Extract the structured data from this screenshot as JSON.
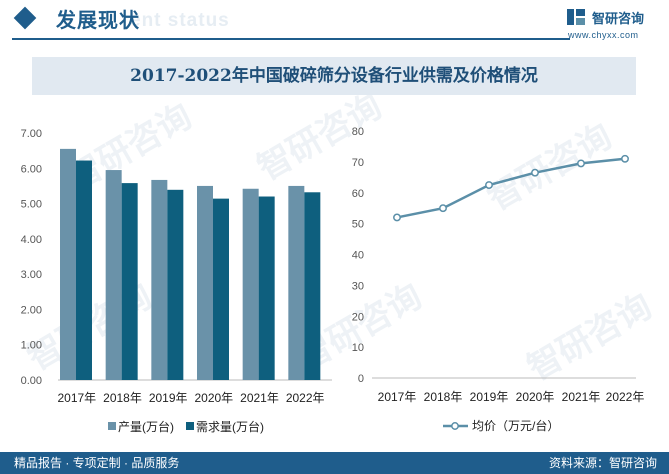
{
  "header": {
    "title": "发展现状",
    "title_bg": "ent status",
    "logo_text": "智研咨询",
    "logo_url": "www.chyxx.com"
  },
  "banner": {
    "title": "2017-2022年中国破碎筛分设备行业供需及价格情况"
  },
  "footer": {
    "left": "精品报告 · 专项定制 · 品质服务",
    "right": "资料来源：智研咨询"
  },
  "watermark": "智研咨询",
  "colors": {
    "brand": "#1f5d8c",
    "production": "#6a92a9",
    "demand": "#0e5f7e",
    "price_line": "#5b8fa8"
  },
  "chart_data": [
    {
      "type": "bar",
      "categories": [
        "2017年",
        "2018年",
        "2019年",
        "2020年",
        "2021年",
        "2022年"
      ],
      "ylim": [
        0,
        7
      ],
      "yticks": [
        "0.00",
        "1.00",
        "2.00",
        "3.00",
        "4.00",
        "5.00",
        "6.00",
        "7.00"
      ],
      "series": [
        {
          "name": "产量(万台)",
          "values": [
            6.55,
            5.95,
            5.67,
            5.5,
            5.42,
            5.5
          ]
        },
        {
          "name": "需求量(万台)",
          "values": [
            6.22,
            5.58,
            5.39,
            5.14,
            5.2,
            5.32
          ]
        }
      ],
      "legend": "bottom"
    },
    {
      "type": "line",
      "categories": [
        "2017年",
        "2018年",
        "2019年",
        "2020年",
        "2021年",
        "2022年"
      ],
      "ylim": [
        0,
        80
      ],
      "yticks": [
        "0",
        "10",
        "20",
        "30",
        "40",
        "50",
        "60",
        "70",
        "80"
      ],
      "series": [
        {
          "name": "均价（万元/台）",
          "values": [
            52,
            55,
            62.5,
            66.5,
            69.5,
            71
          ]
        }
      ],
      "legend": "bottom"
    }
  ]
}
